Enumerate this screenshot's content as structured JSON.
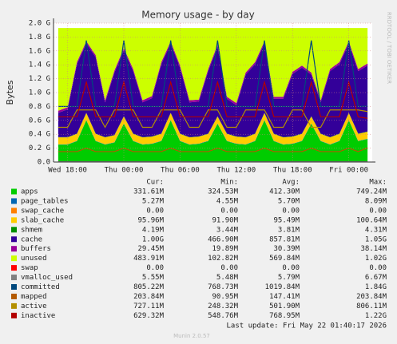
{
  "chart_data": {
    "type": "stacked_area",
    "title": "Memory usage - by day",
    "ylabel": "Bytes",
    "watermark": "RRDTOOL / TOBI OETIKER",
    "footer": "Last update: Fri May 22 01:40:17 2026",
    "version": "Munin 2.0.57",
    "legend_headers": [
      "Cur:",
      "Min:",
      "Avg:",
      "Max:"
    ],
    "grid": true,
    "ylim": [
      0,
      2000000000
    ],
    "yticks": [
      {
        "value": 0,
        "label": "0.0"
      },
      {
        "value": 200000000,
        "label": "0.2 G"
      },
      {
        "value": 400000000,
        "label": "0.4 G"
      },
      {
        "value": 600000000,
        "label": "0.6 G"
      },
      {
        "value": 800000000,
        "label": "0.8 G"
      },
      {
        "value": 1000000000,
        "label": "1.0 G"
      },
      {
        "value": 1200000000,
        "label": "1.2 G"
      },
      {
        "value": 1400000000,
        "label": "1.4 G"
      },
      {
        "value": 1600000000,
        "label": "1.6 G"
      },
      {
        "value": 1800000000,
        "label": "1.8 G"
      },
      {
        "value": 2000000000,
        "label": "2.0 G"
      }
    ],
    "categories": [
      null,
      "Wed 18:00",
      null,
      null,
      null,
      null,
      null,
      "Thu 00:00",
      null,
      null,
      null,
      null,
      null,
      "Thu 06:00",
      null,
      null,
      null,
      null,
      null,
      "Thu 12:00",
      null,
      null,
      null,
      null,
      null,
      "Thu 18:00",
      null,
      null,
      null,
      null,
      null,
      "Fri 00:00",
      null,
      null
    ],
    "series": [
      {
        "name": "apps",
        "color": "#00cc00",
        "stack": true,
        "cur": "331.61M",
        "min": "324.53M",
        "avg": "412.30M",
        "max": "749.24M",
        "values": [
          250000000.0,
          250000000.0,
          300000000.0,
          600000000.0,
          300000000.0,
          250000000.0,
          280000000.0,
          550000000.0,
          300000000.0,
          250000000.0,
          260000000.0,
          300000000.0,
          600000000.0,
          300000000.0,
          250000000.0,
          260000000.0,
          300000000.0,
          550000000.0,
          300000000.0,
          260000000.0,
          250000000.0,
          300000000.0,
          600000000.0,
          300000000.0,
          250000000.0,
          260000000.0,
          300000000.0,
          550000000.0,
          300000000.0,
          250000000.0,
          300000000.0,
          600000000.0,
          300000000.0,
          330000000.0
        ]
      },
      {
        "name": "page_tables",
        "color": "#0066b3",
        "stack": true,
        "cur": "5.27M",
        "min": "4.55M",
        "avg": "5.70M",
        "max": "8.09M",
        "values": [
          5000000.0,
          5000000.0,
          5000000.0,
          5000000.0,
          5000000.0,
          5000000.0,
          5000000.0,
          5000000.0,
          5000000.0,
          5000000.0,
          5000000.0,
          5000000.0,
          5000000.0,
          5000000.0,
          5000000.0,
          5000000.0,
          5000000.0,
          5000000.0,
          5000000.0,
          5000000.0,
          5000000.0,
          5000000.0,
          5000000.0,
          5000000.0,
          5000000.0,
          5000000.0,
          5000000.0,
          5000000.0,
          5000000.0,
          5000000.0,
          5000000.0,
          5000000.0,
          5000000.0,
          5000000.0
        ]
      },
      {
        "name": "swap_cache",
        "color": "#ff8000",
        "stack": true,
        "cur": "0.00",
        "min": "0.00",
        "avg": "0.00",
        "max": "0.00",
        "values": [
          0,
          0,
          0,
          0,
          0,
          0,
          0,
          0,
          0,
          0,
          0,
          0,
          0,
          0,
          0,
          0,
          0,
          0,
          0,
          0,
          0,
          0,
          0,
          0,
          0,
          0,
          0,
          0,
          0,
          0,
          0,
          0,
          0,
          0
        ]
      },
      {
        "name": "slab_cache",
        "color": "#ffcc00",
        "stack": true,
        "cur": "95.96M",
        "min": "91.90M",
        "avg": "95.49M",
        "max": "100.64M",
        "values": [
          100000000.0,
          100000000.0,
          100000000.0,
          100000000.0,
          100000000.0,
          100000000.0,
          100000000.0,
          100000000.0,
          100000000.0,
          100000000.0,
          100000000.0,
          100000000.0,
          100000000.0,
          100000000.0,
          100000000.0,
          100000000.0,
          100000000.0,
          100000000.0,
          100000000.0,
          100000000.0,
          100000000.0,
          100000000.0,
          100000000.0,
          100000000.0,
          100000000.0,
          100000000.0,
          100000000.0,
          100000000.0,
          100000000.0,
          100000000.0,
          100000000.0,
          100000000.0,
          100000000.0,
          100000000.0
        ]
      },
      {
        "name": "shmem",
        "color": "#008f00",
        "stack": true,
        "cur": "4.19M",
        "min": "3.44M",
        "avg": "3.81M",
        "max": "4.31M",
        "values": [
          4000000.0,
          4000000.0,
          4000000.0,
          4000000.0,
          4000000.0,
          4000000.0,
          4000000.0,
          4000000.0,
          4000000.0,
          4000000.0,
          4000000.0,
          4000000.0,
          4000000.0,
          4000000.0,
          4000000.0,
          4000000.0,
          4000000.0,
          4000000.0,
          4000000.0,
          4000000.0,
          4000000.0,
          4000000.0,
          4000000.0,
          4000000.0,
          4000000.0,
          4000000.0,
          4000000.0,
          4000000.0,
          4000000.0,
          4000000.0,
          4000000.0,
          4000000.0,
          4000000.0,
          4000000.0
        ]
      },
      {
        "name": "cache",
        "color": "#330099",
        "stack": true,
        "cur": "1.00G",
        "min": "466.90M",
        "avg": "857.81M",
        "max": "1.05G",
        "values": [
          350000000.0,
          400000000.0,
          1000000000.0,
          1000000000.0,
          1100000000.0,
          500000000.0,
          900000000.0,
          950000000.0,
          900000000.0,
          500000000.0,
          550000000.0,
          1000000000.0,
          1000000000.0,
          950000000.0,
          500000000.0,
          500000000.0,
          900000000.0,
          1000000000.0,
          500000000.0,
          450000000.0,
          900000000.0,
          1000000000.0,
          1000000000.0,
          500000000.0,
          550000000.0,
          900000000.0,
          950000000.0,
          600000000.0,
          450000000.0,
          950000000.0,
          1000000000.0,
          1000000000.0,
          900000000.0,
          950000000.0
        ]
      },
      {
        "name": "buffers",
        "color": "#990099",
        "stack": true,
        "cur": "29.45M",
        "min": "19.89M",
        "avg": "30.39M",
        "max": "38.14M",
        "values": [
          30000000.0,
          30000000.0,
          30000000.0,
          30000000.0,
          30000000.0,
          30000000.0,
          30000000.0,
          30000000.0,
          30000000.0,
          30000000.0,
          30000000.0,
          30000000.0,
          30000000.0,
          30000000.0,
          30000000.0,
          30000000.0,
          30000000.0,
          30000000.0,
          30000000.0,
          30000000.0,
          30000000.0,
          30000000.0,
          30000000.0,
          30000000.0,
          30000000.0,
          30000000.0,
          30000000.0,
          30000000.0,
          30000000.0,
          30000000.0,
          30000000.0,
          30000000.0,
          30000000.0,
          30000000.0
        ]
      },
      {
        "name": "unused",
        "color": "#ccff00",
        "stack": true,
        "cur": "483.91M",
        "min": "102.82M",
        "avg": "569.84M",
        "max": "1.02G",
        "values": [
          1191000000.0,
          1141000000.0,
          491000000.0,
          191000000.0,
          391000000.0,
          1041000000.0,
          611000000.0,
          291000000.0,
          591000000.0,
          1041000000.0,
          981000000.0,
          491000000.0,
          191000000.0,
          541000000.0,
          1041000000.0,
          1031000000.0,
          591000000.0,
          241000000.0,
          991000000.0,
          1081000000.0,
          641000000.0,
          491000000.0,
          191000000.0,
          991000000.0,
          991000000.0,
          631000000.0,
          541000000.0,
          641000000.0,
          1041000000.0,
          591000000.0,
          491000000.0,
          191000000.0,
          591000000.0,
          511000000.0
        ]
      },
      {
        "name": "swap",
        "color": "#ff0000",
        "stack": true,
        "cur": "0.00",
        "min": "0.00",
        "avg": "0.00",
        "max": "0.00",
        "values": [
          0,
          0,
          0,
          0,
          0,
          0,
          0,
          0,
          0,
          0,
          0,
          0,
          0,
          0,
          0,
          0,
          0,
          0,
          0,
          0,
          0,
          0,
          0,
          0,
          0,
          0,
          0,
          0,
          0,
          0,
          0,
          0,
          0,
          0
        ]
      },
      {
        "name": "vmalloc_used",
        "color": "#808080",
        "stack": false,
        "cur": "5.55M",
        "min": "5.48M",
        "avg": "5.79M",
        "max": "6.67M",
        "values": [
          5500000.0,
          5500000.0,
          5500000.0,
          5500000.0,
          5500000.0,
          5500000.0,
          5500000.0,
          5500000.0,
          5500000.0,
          5500000.0,
          5500000.0,
          5500000.0,
          5500000.0,
          5500000.0,
          5500000.0,
          5500000.0,
          5500000.0,
          5500000.0,
          5500000.0,
          5500000.0,
          5500000.0,
          5500000.0,
          5500000.0,
          5500000.0,
          5500000.0,
          5500000.0,
          5500000.0,
          5500000.0,
          5500000.0,
          5500000.0,
          5500000.0,
          5500000.0,
          5500000.0,
          5500000.0
        ]
      },
      {
        "name": "committed",
        "color": "#00487d",
        "stack": false,
        "cur": "805.22M",
        "min": "768.73M",
        "avg": "1019.84M",
        "max": "1.84G",
        "values": [
          800000000.0,
          800000000.0,
          800000000.0,
          1750000000.0,
          800000000.0,
          800000000.0,
          800000000.0,
          1750000000.0,
          800000000.0,
          800000000.0,
          800000000.0,
          800000000.0,
          1750000000.0,
          800000000.0,
          800000000.0,
          800000000.0,
          800000000.0,
          1750000000.0,
          800000000.0,
          800000000.0,
          800000000.0,
          800000000.0,
          1750000000.0,
          800000000.0,
          800000000.0,
          800000000.0,
          800000000.0,
          1750000000.0,
          800000000.0,
          800000000.0,
          800000000.0,
          1750000000.0,
          800000000.0,
          805000000.0
        ]
      },
      {
        "name": "mapped",
        "color": "#b35a00",
        "stack": false,
        "cur": "203.84M",
        "min": "90.95M",
        "avg": "147.41M",
        "max": "203.84M",
        "values": [
          150000000.0,
          150000000.0,
          150000000.0,
          200000000.0,
          150000000.0,
          150000000.0,
          150000000.0,
          200000000.0,
          150000000.0,
          150000000.0,
          150000000.0,
          150000000.0,
          200000000.0,
          150000000.0,
          150000000.0,
          150000000.0,
          150000000.0,
          200000000.0,
          150000000.0,
          150000000.0,
          150000000.0,
          150000000.0,
          200000000.0,
          150000000.0,
          150000000.0,
          150000000.0,
          150000000.0,
          200000000.0,
          150000000.0,
          150000000.0,
          150000000.0,
          200000000.0,
          150000000.0,
          204000000.0
        ]
      },
      {
        "name": "active",
        "color": "#b38f00",
        "stack": false,
        "cur": "727.11M",
        "min": "248.32M",
        "avg": "501.90M",
        "max": "806.11M",
        "values": [
          500000000.0,
          500000000.0,
          750000000.0,
          750000000.0,
          750000000.0,
          500000000.0,
          750000000.0,
          750000000.0,
          750000000.0,
          500000000.0,
          500000000.0,
          750000000.0,
          750000000.0,
          750000000.0,
          500000000.0,
          500000000.0,
          750000000.0,
          750000000.0,
          500000000.0,
          500000000.0,
          750000000.0,
          750000000.0,
          750000000.0,
          500000000.0,
          500000000.0,
          750000000.0,
          750000000.0,
          500000000.0,
          500000000.0,
          750000000.0,
          750000000.0,
          750000000.0,
          750000000.0,
          727000000.0
        ]
      },
      {
        "name": "inactive",
        "color": "#b30000",
        "stack": false,
        "cur": "629.32M",
        "min": "548.76M",
        "avg": "768.95M",
        "max": "1.22G",
        "values": [
          650000000.0,
          650000000.0,
          650000000.0,
          1150000000.0,
          650000000.0,
          650000000.0,
          650000000.0,
          1150000000.0,
          650000000.0,
          650000000.0,
          650000000.0,
          650000000.0,
          1150000000.0,
          650000000.0,
          650000000.0,
          650000000.0,
          650000000.0,
          1150000000.0,
          650000000.0,
          650000000.0,
          650000000.0,
          650000000.0,
          1150000000.0,
          650000000.0,
          650000000.0,
          650000000.0,
          650000000.0,
          1150000000.0,
          650000000.0,
          650000000.0,
          650000000.0,
          1150000000.0,
          650000000.0,
          629000000.0
        ]
      }
    ]
  }
}
